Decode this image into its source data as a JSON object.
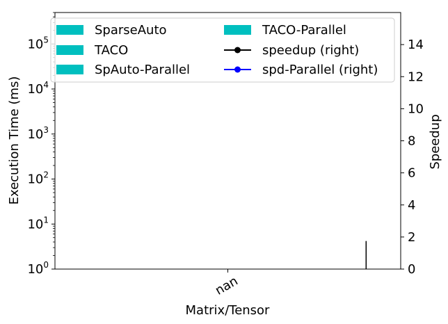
{
  "chart_data": {
    "type": "bar",
    "categories": [
      "nan"
    ],
    "xlabel": "Matrix/Tensor",
    "ylabel_left": "Execution Time (ms)",
    "ylabel_right": "Speedup",
    "y_left_scale": "log",
    "y_left_ticks": [
      {
        "base": "10",
        "exp": "0"
      },
      {
        "base": "10",
        "exp": "1"
      },
      {
        "base": "10",
        "exp": "2"
      },
      {
        "base": "10",
        "exp": "3"
      },
      {
        "base": "10",
        "exp": "4"
      },
      {
        "base": "10",
        "exp": "5"
      }
    ],
    "y_left_lim": [
      1,
      500000
    ],
    "y_right_ticks": [
      "0",
      "2",
      "4",
      "6",
      "8",
      "10",
      "12",
      "14"
    ],
    "y_right_lim": [
      0,
      16
    ],
    "x_range": [
      -0.5,
      0.5
    ],
    "error_bar": {
      "x": 0.4,
      "y_low": 0,
      "y_high": 1.75,
      "axis": "right"
    },
    "grid": false,
    "legend_position": "top",
    "legend": [
      {
        "label": "SparseAuto",
        "kind": "bar",
        "color": "#00bfbf"
      },
      {
        "label": "TACO",
        "kind": "bar",
        "color": "#00bfbf"
      },
      {
        "label": "SpAuto-Parallel",
        "kind": "bar",
        "color": "#00bfbf"
      },
      {
        "label": "TACO-Parallel",
        "kind": "bar",
        "color": "#00bfbf"
      },
      {
        "label": "speedup (right)",
        "kind": "line",
        "color": "#000000"
      },
      {
        "label": "spd-Parallel (right)",
        "kind": "line",
        "color": "#0000ff"
      }
    ],
    "series": [
      {
        "name": "SparseAuto",
        "values": [
          null
        ]
      },
      {
        "name": "TACO",
        "values": [
          null
        ]
      },
      {
        "name": "SpAuto-Parallel",
        "values": [
          null
        ]
      },
      {
        "name": "TACO-Parallel",
        "values": [
          null
        ]
      },
      {
        "name": "speedup (right)",
        "values": [
          null
        ]
      },
      {
        "name": "spd-Parallel (right)",
        "values": [
          null
        ]
      }
    ]
  }
}
